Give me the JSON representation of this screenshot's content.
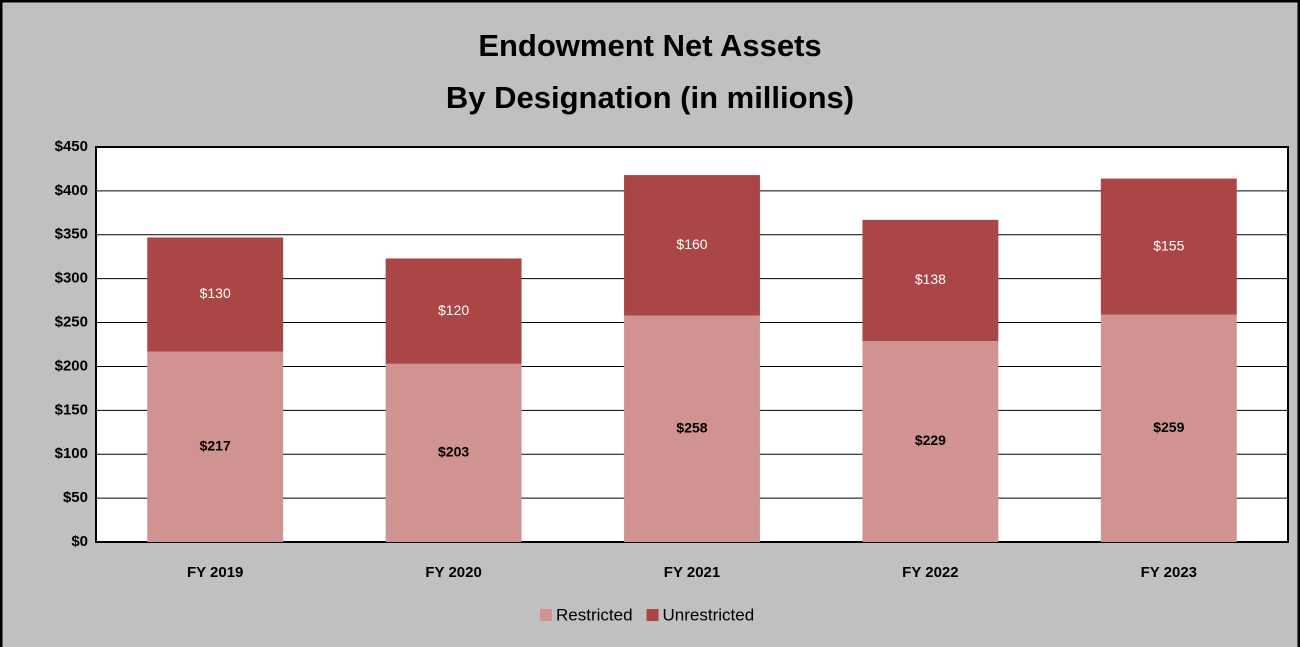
{
  "chart_data": {
    "type": "stacked_bar",
    "title": "Endowment Net Assets",
    "subtitle": "By Designation (in millions)",
    "categories": [
      "FY 2019",
      "FY 2020",
      "FY 2021",
      "FY 2022",
      "FY 2023"
    ],
    "series": [
      {
        "name": "Restricted",
        "color": "#d19292",
        "values": [
          217,
          203,
          258,
          229,
          259
        ],
        "value_labels": [
          "$217",
          "$203",
          "$258",
          "$229",
          "$259"
        ]
      },
      {
        "name": "Unrestricted",
        "color": "#aa4646",
        "values": [
          130,
          120,
          160,
          138,
          155
        ],
        "value_labels": [
          "$130",
          "$120",
          "$160",
          "$138",
          "$155"
        ]
      }
    ],
    "ylim": [
      0,
      450
    ],
    "yticks": [
      {
        "value": 0,
        "label": "$0"
      },
      {
        "value": 50,
        "label": "$50"
      },
      {
        "value": 100,
        "label": "$100"
      },
      {
        "value": 150,
        "label": "$150"
      },
      {
        "value": 200,
        "label": "$200"
      },
      {
        "value": 250,
        "label": "$250"
      },
      {
        "value": 300,
        "label": "$300"
      },
      {
        "value": 350,
        "label": "$350"
      },
      {
        "value": 400,
        "label": "$400"
      },
      {
        "value": 450,
        "label": "$450"
      }
    ],
    "grid": true,
    "legend": "bottom"
  }
}
